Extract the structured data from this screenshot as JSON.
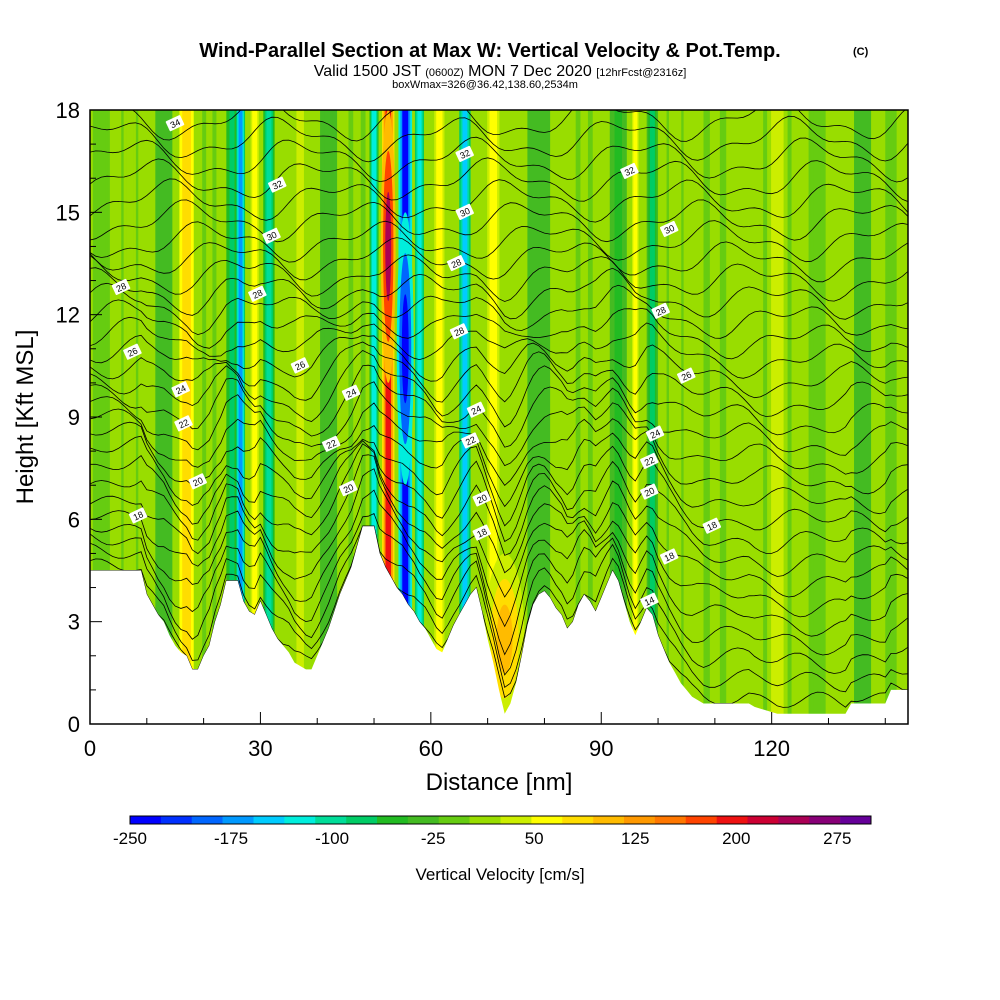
{
  "header": {
    "title": "Wind-Parallel Section at Max W: Vertical Velocity & Pot.Temp.",
    "title_mark": "(C)",
    "valid_prefix": "Valid 1500 JST",
    "valid_utc": "(0600Z)",
    "valid_date": "MON 7 Dec 2020",
    "forecast": "[12hrFcst@2316z]",
    "box_info": "boxWmax=326@36.42,138.60,2534m"
  },
  "chart_data": {
    "type": "heatmap",
    "xlabel": "Distance [nm]",
    "ylabel": "Height [Kft MSL]",
    "xlim": [
      0,
      144
    ],
    "ylim": [
      0,
      18
    ],
    "x_ticks": [
      "0",
      "30",
      "60",
      "90",
      "120"
    ],
    "y_ticks": [
      "0",
      "3",
      "6",
      "9",
      "12",
      "15",
      "18"
    ],
    "colorbar": {
      "label": "Vertical Velocity [cm/s]",
      "min": -250,
      "max": 300,
      "step": 25,
      "tick_labels": [
        "-250",
        "-175",
        "-100",
        "-25",
        "50",
        "125",
        "200",
        "275"
      ],
      "colors": [
        "#0000ff",
        "#0030ff",
        "#0066ff",
        "#0099ff",
        "#00ccff",
        "#00eedd",
        "#00dd99",
        "#00cc66",
        "#22bb22",
        "#44bb22",
        "#66cc11",
        "#99dd00",
        "#ccee00",
        "#ffff00",
        "#ffdd00",
        "#ffbb00",
        "#ff9900",
        "#ff7700",
        "#ff4400",
        "#ee1111",
        "#cc0033",
        "#aa0055",
        "#880077",
        "#660099"
      ]
    },
    "vertical_velocity_columns": [
      {
        "x": 2,
        "w": 3,
        "value": 10,
        "ymax": 18
      },
      {
        "x": 7,
        "w": 3,
        "value": 45,
        "ymax": 18
      },
      {
        "x": 13,
        "w": 3,
        "value": -10,
        "ymax": 18
      },
      {
        "x": 17,
        "w": 3.5,
        "value": 110,
        "ymax": 18
      },
      {
        "x": 21,
        "w": 2.5,
        "value": 25,
        "ymax": 18
      },
      {
        "x": 25,
        "w": 2,
        "value": -60,
        "ymax": 18
      },
      {
        "x": 26.5,
        "w": 1.6,
        "value": -160,
        "ymax": 18
      },
      {
        "x": 29,
        "w": 2,
        "value": 95,
        "ymax": 18
      },
      {
        "x": 31.5,
        "w": 2,
        "value": -90,
        "ymax": 18
      },
      {
        "x": 37,
        "w": 3,
        "value": 60,
        "ymax": 18
      },
      {
        "x": 42,
        "w": 3,
        "value": -20,
        "ymax": 18
      },
      {
        "x": 47,
        "w": 3,
        "value": 30,
        "ymax": 18
      },
      {
        "x": 50,
        "w": 1.6,
        "value": -110,
        "ymax": 18
      },
      {
        "x": 52.5,
        "w": 2.2,
        "value": 230,
        "ymax": 18
      },
      {
        "x": 55.5,
        "w": 2.4,
        "value": -230,
        "ymax": 18
      },
      {
        "x": 58,
        "w": 1.6,
        "value": -120,
        "ymax": 18
      },
      {
        "x": 61.5,
        "w": 2.5,
        "value": 80,
        "ymax": 18
      },
      {
        "x": 66,
        "w": 2,
        "value": -130,
        "ymax": 18
      },
      {
        "x": 71,
        "w": 3,
        "value": 85,
        "ymax": 18
      },
      {
        "x": 79,
        "w": 4,
        "value": -25,
        "ymax": 18
      },
      {
        "x": 87,
        "w": 3,
        "value": 30,
        "ymax": 18
      },
      {
        "x": 93,
        "w": 3,
        "value": -30,
        "ymax": 18
      },
      {
        "x": 96,
        "w": 1.6,
        "value": 75,
        "ymax": 18
      },
      {
        "x": 99,
        "w": 2,
        "value": -55,
        "ymax": 18
      },
      {
        "x": 103,
        "w": 3,
        "value": 45,
        "ymax": 18
      },
      {
        "x": 110,
        "w": 4,
        "value": 35,
        "ymax": 18
      },
      {
        "x": 121,
        "w": 5,
        "value": 55,
        "ymax": 18
      },
      {
        "x": 128,
        "w": 3,
        "value": 20,
        "ymax": 18
      },
      {
        "x": 136,
        "w": 3,
        "value": -5,
        "ymax": 18
      },
      {
        "x": 141,
        "w": 2,
        "value": 20,
        "ymax": 18
      }
    ],
    "blobs": [
      {
        "x": 73,
        "y": 2.5,
        "rx": 3.5,
        "ry": 2.5,
        "value": 140
      },
      {
        "x": 55.5,
        "y": 11,
        "rx": 1.5,
        "ry": 4,
        "value": -250
      },
      {
        "x": 52.5,
        "y": 14,
        "rx": 1.3,
        "ry": 4,
        "value": 275
      }
    ],
    "terrain": [
      [
        0,
        4.5
      ],
      [
        9,
        4.5
      ],
      [
        10,
        3.8
      ],
      [
        11,
        3.5
      ],
      [
        12,
        3.2
      ],
      [
        13,
        3
      ],
      [
        14,
        2.6
      ],
      [
        15,
        2.3
      ],
      [
        16,
        2.1
      ],
      [
        17,
        2
      ],
      [
        18,
        1.6
      ],
      [
        19,
        1.6
      ],
      [
        20,
        2
      ],
      [
        21,
        2.3
      ],
      [
        22,
        3
      ],
      [
        23,
        3.5
      ],
      [
        24,
        4.2
      ],
      [
        26,
        4.2
      ],
      [
        27,
        3.6
      ],
      [
        28,
        3.3
      ],
      [
        29,
        3.2
      ],
      [
        30,
        3.6
      ],
      [
        31,
        3.2
      ],
      [
        32,
        2.8
      ],
      [
        33,
        2.5
      ],
      [
        34,
        2.3
      ],
      [
        35,
        2.1
      ],
      [
        36,
        1.8
      ],
      [
        38,
        1.6
      ],
      [
        39,
        1.6
      ],
      [
        40,
        2.0
      ],
      [
        41,
        2.4
      ],
      [
        42,
        2.8
      ],
      [
        43,
        3.3
      ],
      [
        44,
        3.8
      ],
      [
        45,
        4.2
      ],
      [
        46,
        4.6
      ],
      [
        47,
        5.2
      ],
      [
        48,
        5.8
      ],
      [
        50,
        5.8
      ],
      [
        51,
        5.0
      ],
      [
        52,
        4.6
      ],
      [
        53,
        4.3
      ],
      [
        54,
        4.0
      ],
      [
        55,
        3.8
      ],
      [
        56,
        3.5
      ],
      [
        57,
        3.3
      ],
      [
        58,
        3.0
      ],
      [
        59,
        2.8
      ],
      [
        60,
        2.5
      ],
      [
        61,
        2.2
      ],
      [
        62,
        2.1
      ],
      [
        63,
        2.5
      ],
      [
        64,
        2.9
      ],
      [
        65,
        3.2
      ],
      [
        66,
        3.5
      ],
      [
        67,
        3.8
      ],
      [
        68,
        4.0
      ],
      [
        69,
        3.3
      ],
      [
        70,
        2.5
      ],
      [
        71,
        1.8
      ],
      [
        72,
        1.0
      ],
      [
        73,
        0.3
      ],
      [
        74,
        0.6
      ],
      [
        75,
        1.2
      ],
      [
        76,
        2.0
      ],
      [
        77,
        2.9
      ],
      [
        78,
        3.5
      ],
      [
        79,
        3.8
      ],
      [
        80,
        3.9
      ],
      [
        81,
        3.7
      ],
      [
        82,
        3.4
      ],
      [
        83,
        3.2
      ],
      [
        84,
        2.8
      ],
      [
        85,
        3.0
      ],
      [
        86,
        3.5
      ],
      [
        87,
        3.8
      ],
      [
        88,
        3.6
      ],
      [
        89,
        3.3
      ],
      [
        90,
        3.7
      ],
      [
        91,
        4.1
      ],
      [
        92,
        4.5
      ],
      [
        93,
        4.2
      ],
      [
        94,
        3.6
      ],
      [
        95,
        3.0
      ],
      [
        96,
        2.6
      ],
      [
        97,
        3.0
      ],
      [
        98,
        3.4
      ],
      [
        99,
        3.2
      ],
      [
        100,
        2.6
      ],
      [
        101,
        2.2
      ],
      [
        102,
        1.8
      ],
      [
        103,
        1.5
      ],
      [
        104,
        1.2
      ],
      [
        105,
        1.0
      ],
      [
        106,
        0.8
      ],
      [
        108,
        0.6
      ],
      [
        116,
        0.6
      ],
      [
        117,
        0.5
      ],
      [
        121,
        0.3
      ],
      [
        133,
        0.3
      ],
      [
        134,
        0.6
      ],
      [
        140,
        0.6
      ],
      [
        141,
        1.0
      ],
      [
        144,
        1.0
      ]
    ],
    "contour_labels": [
      {
        "text": "34",
        "x": 15,
        "y": 17.6
      },
      {
        "text": "32",
        "x": 33,
        "y": 15.8
      },
      {
        "text": "30",
        "x": 32,
        "y": 14.3
      },
      {
        "text": "28",
        "x": 29.5,
        "y": 12.6
      },
      {
        "text": "28",
        "x": 5.5,
        "y": 12.8
      },
      {
        "text": "26",
        "x": 7.5,
        "y": 10.9
      },
      {
        "text": "26",
        "x": 37,
        "y": 10.5
      },
      {
        "text": "24",
        "x": 16,
        "y": 9.8
      },
      {
        "text": "24",
        "x": 46,
        "y": 9.7
      },
      {
        "text": "22",
        "x": 16.5,
        "y": 8.8
      },
      {
        "text": "22",
        "x": 42.5,
        "y": 8.2
      },
      {
        "text": "20",
        "x": 19,
        "y": 7.1
      },
      {
        "text": "20",
        "x": 45.5,
        "y": 6.9
      },
      {
        "text": "18",
        "x": 8.5,
        "y": 6.1
      },
      {
        "text": "32",
        "x": 66,
        "y": 16.7
      },
      {
        "text": "30",
        "x": 66,
        "y": 15
      },
      {
        "text": "28",
        "x": 64.5,
        "y": 13.5
      },
      {
        "text": "28",
        "x": 65,
        "y": 11.5
      },
      {
        "text": "24",
        "x": 68,
        "y": 9.2
      },
      {
        "text": "22",
        "x": 67,
        "y": 8.3
      },
      {
        "text": "20",
        "x": 69,
        "y": 6.6
      },
      {
        "text": "18",
        "x": 69,
        "y": 5.6
      },
      {
        "text": "32",
        "x": 95,
        "y": 16.2
      },
      {
        "text": "30",
        "x": 102,
        "y": 14.5
      },
      {
        "text": "28",
        "x": 100.5,
        "y": 12.1
      },
      {
        "text": "26",
        "x": 105,
        "y": 10.2
      },
      {
        "text": "24",
        "x": 99.5,
        "y": 8.5
      },
      {
        "text": "22",
        "x": 98.5,
        "y": 7.7
      },
      {
        "text": "20",
        "x": 98.5,
        "y": 6.8
      },
      {
        "text": "18",
        "x": 109.5,
        "y": 5.8
      },
      {
        "text": "18",
        "x": 102,
        "y": 4.9
      },
      {
        "text": "14",
        "x": 98.5,
        "y": 3.6
      }
    ]
  }
}
